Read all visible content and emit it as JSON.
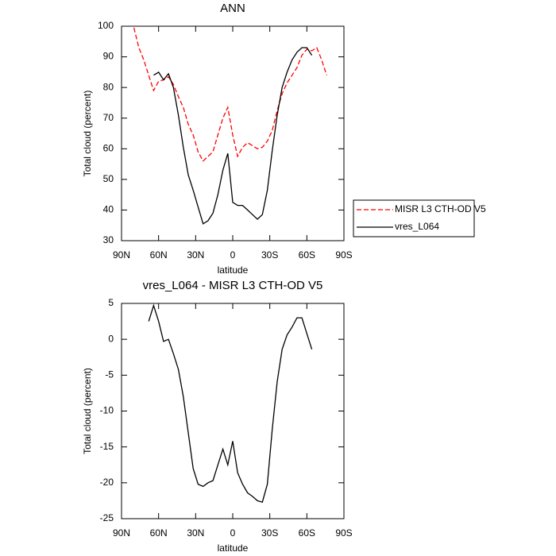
{
  "chart_data": [
    {
      "type": "line",
      "title": "ANN",
      "x_label": "latitude",
      "y_label": "Total cloud (percent)",
      "x": [
        80,
        76,
        72,
        68,
        64,
        60,
        56,
        52,
        48,
        44,
        40,
        36,
        32,
        28,
        24,
        20,
        16,
        12,
        8,
        4,
        0,
        -4,
        -8,
        -12,
        -16,
        -20,
        -24,
        -28,
        -32,
        -36,
        -40,
        -44,
        -48,
        -52,
        -56,
        -60,
        -64,
        -68,
        -72,
        -76
      ],
      "xlim": [
        90,
        -90
      ],
      "xticks": [
        {
          "value": 90,
          "label": "90N"
        },
        {
          "value": 60,
          "label": "60N"
        },
        {
          "value": 30,
          "label": "30N"
        },
        0,
        {
          "value": -30,
          "label": "30S"
        },
        {
          "value": -60,
          "label": "60S"
        },
        {
          "value": -90,
          "label": "90S"
        }
      ],
      "ylim": [
        30,
        100
      ],
      "yticks": [
        30,
        40,
        50,
        60,
        70,
        80,
        90,
        100
      ],
      "legend": "right",
      "series": [
        {
          "name": "MISR L3 CTH-OD V5",
          "color": "#ff0000",
          "line_style": "dashed",
          "values": [
            99.5,
            93,
            89,
            84,
            79,
            82,
            82.5,
            83.5,
            81,
            77,
            73.5,
            68,
            64.5,
            59,
            56,
            57.5,
            59,
            64.5,
            70,
            73.5,
            64.5,
            57.5,
            60.5,
            62,
            61,
            60,
            60.5,
            62.5,
            66,
            72.5,
            78,
            81.5,
            84,
            86.5,
            90.5,
            92.5,
            92,
            93,
            89,
            84
          ]
        },
        {
          "name": "vres_L064",
          "color": "#000000",
          "line_style": "solid",
          "values": [
            null,
            null,
            null,
            null,
            84,
            85,
            82.5,
            84.5,
            80,
            71,
            60.5,
            51.5,
            46.5,
            41,
            35.5,
            36.5,
            39,
            45,
            53,
            58.5,
            42.5,
            41.5,
            41.5,
            40,
            38.5,
            37,
            38.5,
            46.5,
            59.5,
            71,
            80,
            85,
            89,
            91.5,
            93,
            93,
            90.5,
            null,
            null,
            null
          ]
        }
      ]
    },
    {
      "type": "line",
      "title": "vres_L064 - MISR L3 CTH-OD V5",
      "x_label": "latitude",
      "y_label": "Total cloud (percent)",
      "x": [
        68,
        64,
        60,
        56,
        52,
        48,
        44,
        40,
        36,
        32,
        28,
        24,
        20,
        16,
        12,
        8,
        4,
        0,
        -4,
        -8,
        -12,
        -16,
        -20,
        -24,
        -28,
        -32,
        -36,
        -40,
        -44,
        -48,
        -52,
        -56,
        -60,
        -64
      ],
      "xlim": [
        90,
        -90
      ],
      "xticks": [
        {
          "value": 90,
          "label": "90N"
        },
        {
          "value": 60,
          "label": "60N"
        },
        {
          "value": 30,
          "label": "30N"
        },
        0,
        {
          "value": -30,
          "label": "30S"
        },
        {
          "value": -60,
          "label": "60S"
        },
        {
          "value": -90,
          "label": "90S"
        }
      ],
      "ylim": [
        -25,
        5
      ],
      "yticks": [
        -25,
        -20,
        -15,
        -10,
        -5,
        0,
        5
      ],
      "series": [
        {
          "color": "#000000",
          "line_style": "solid",
          "values": [
            2.5,
            4.7,
            2.5,
            -0.3,
            0,
            -2,
            -4.2,
            -8,
            -13,
            -18,
            -20.2,
            -20.5,
            -20,
            -19.7,
            -17.5,
            -15.3,
            -17.5,
            -14.2,
            -18.6,
            -20.2,
            -21.4,
            -21.9,
            -22.5,
            -22.7,
            -20.2,
            -12.5,
            -5.9,
            -1.4,
            0.6,
            1.7,
            3,
            3,
            0.8,
            -1.4
          ]
        }
      ]
    }
  ]
}
